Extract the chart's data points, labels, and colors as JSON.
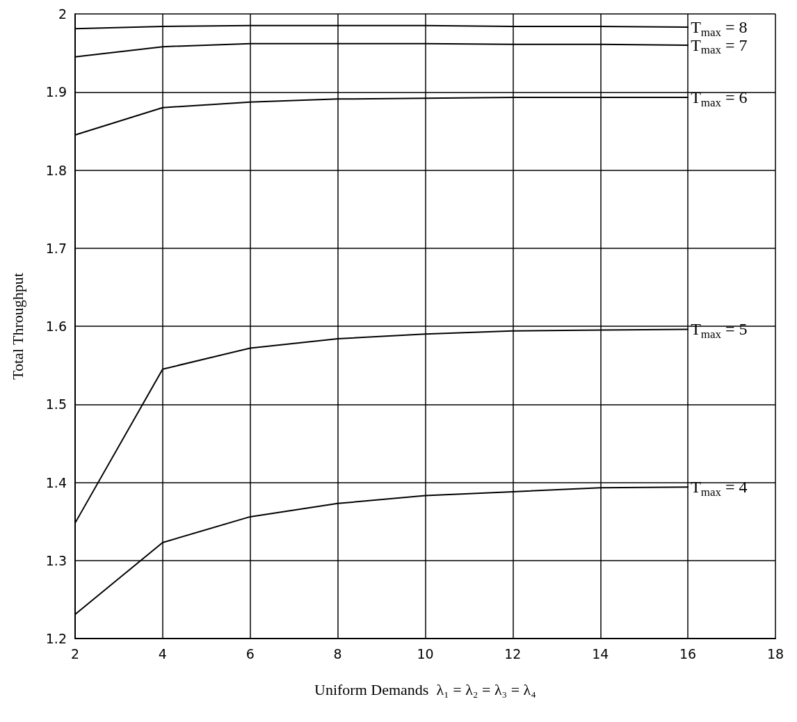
{
  "chart_data": {
    "type": "line",
    "xlabel": "Uniform Demands  λ₁ = λ₂ = λ₃ = λ₄",
    "ylabel": "Total Throughput",
    "x": [
      2,
      4,
      6,
      8,
      10,
      12,
      14,
      16
    ],
    "series": [
      {
        "name": "T$_{max}$ = 8",
        "color": "#000000",
        "values": [
          1.981,
          1.984,
          1.985,
          1.985,
          1.985,
          1.984,
          1.984,
          1.983
        ]
      },
      {
        "name": "T$_{max}$ = 7",
        "color": "#000000",
        "values": [
          1.945,
          1.958,
          1.962,
          1.962,
          1.962,
          1.961,
          1.961,
          1.96
        ]
      },
      {
        "name": "T$_{max}$ = 6",
        "color": "#000000",
        "values": [
          1.845,
          1.88,
          1.887,
          1.891,
          1.892,
          1.893,
          1.893,
          1.893
        ]
      },
      {
        "name": "T$_{max}$ = 5",
        "color": "#000000",
        "values": [
          1.348,
          1.545,
          1.572,
          1.584,
          1.59,
          1.594,
          1.595,
          1.596
        ]
      },
      {
        "name": "T$_{max}$ = 4",
        "color": "#000000",
        "values": [
          1.231,
          1.323,
          1.356,
          1.373,
          1.383,
          1.388,
          1.393,
          1.394
        ]
      }
    ],
    "xlim": [
      2,
      18
    ],
    "xticks": [
      2,
      4,
      6,
      8,
      10,
      12,
      14,
      16,
      18
    ],
    "ylim": [
      1.2,
      2
    ],
    "yticks": [
      1.2,
      1.3,
      1.4,
      1.5,
      1.6,
      1.7,
      1.8,
      1.9,
      2
    ],
    "grid": true,
    "legend": false,
    "marker": "none",
    "line_style": "solid"
  }
}
